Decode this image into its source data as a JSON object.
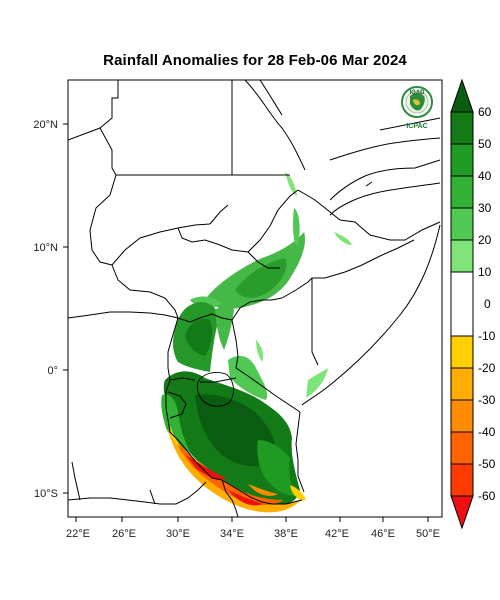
{
  "title": "Rainfall Anomalies for 28 Feb-06 Mar 2024",
  "logo": {
    "top_text": "IGAD",
    "bottom_text": "ICPAC"
  },
  "axes": {
    "lon_ticks": [
      "22°E",
      "26°E",
      "30°E",
      "34°E",
      "38°E",
      "42°E",
      "46°E",
      "50°E"
    ],
    "lat_ticks": [
      "20°N",
      "10°N",
      "0°",
      "10°S"
    ]
  },
  "colorbar": {
    "levels": [
      "60",
      "50",
      "40",
      "30",
      "20",
      "10",
      "0",
      "-10",
      "-20",
      "-30",
      "-40",
      "-50",
      "-60"
    ],
    "colors_top_to_bottom": [
      "#0a5c10",
      "#137a18",
      "#1f9a22",
      "#31b236",
      "#50c853",
      "#7ee47a",
      "#ffffff",
      "#ffd000",
      "#ffae00",
      "#ff8c00",
      "#ff6400",
      "#ff3c00",
      "#ee1010"
    ]
  }
}
